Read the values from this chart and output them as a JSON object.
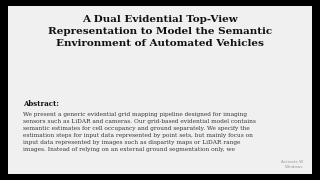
{
  "title": "A Dual Evidential Top-View\nRepresentation to Model the Semantic\nEnvironment of Automated Vehicles",
  "abstract_label": "Abstract:",
  "abstract_text": "We present a generic evidential grid mapping pipeline designed for imaging\nsensors such as LiDAR and cameras. Our grid-based evidential model contains\nsemantic estimates for cell occupancy and ground separately. We specify the\nestimation steps for input data represented by point sets, but mainly focus on\ninput data represented by images such as disparity maps or LiDAR range\nimages. Instead of relying on an external ground segmentation only, we",
  "watermark": "Activate W\nWindows",
  "bg_color": "#e8e8e8",
  "border_color": "#000000",
  "title_color": "#111111",
  "body_color": "#333333",
  "title_fontsize": 7.5,
  "abstract_label_fontsize": 5.0,
  "abstract_text_fontsize": 4.2,
  "border_thickness": 6,
  "inner_bg": "#f0f0f0"
}
